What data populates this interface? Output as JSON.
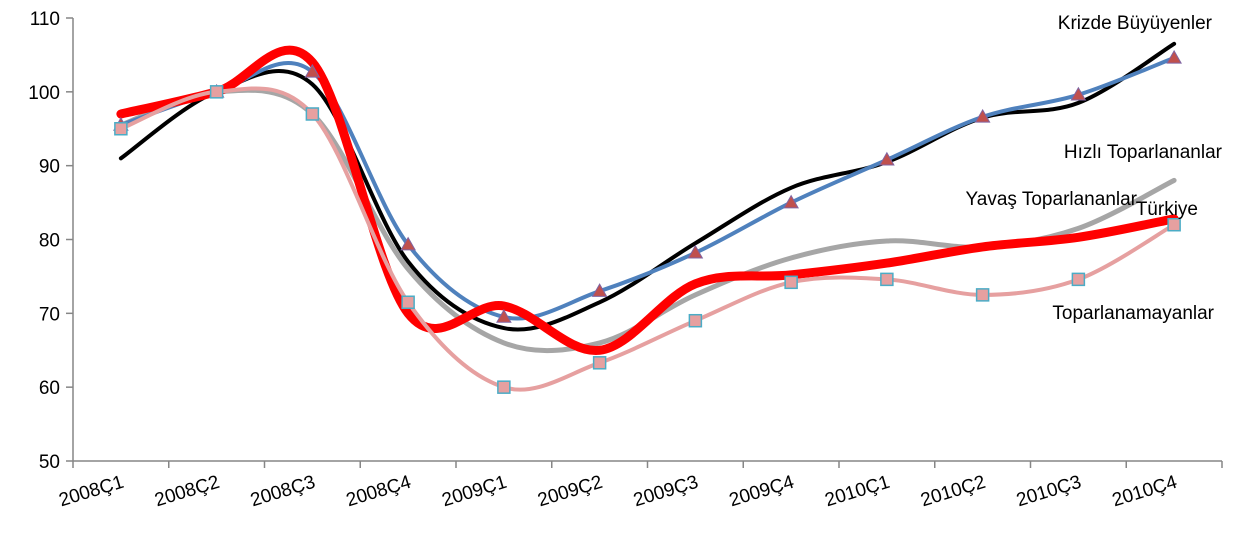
{
  "chart_data": {
    "type": "line",
    "categories": [
      "2008Ç1",
      "2008Ç2",
      "2008Ç3",
      "2008Ç4",
      "2009Ç1",
      "2009Ç2",
      "2009Ç3",
      "2009Ç4",
      "2010Ç1",
      "2010Ç2",
      "2010Ç3",
      "2010Ç4"
    ],
    "ylim": [
      50,
      110
    ],
    "yticks": [
      50,
      60,
      70,
      80,
      90,
      100,
      110
    ],
    "smooth": true,
    "grid": false,
    "legend": "inline labels",
    "series": [
      {
        "name": "Yavaş Toparlananlar",
        "color": "#a6a6a6",
        "width": 5,
        "marker": "none",
        "values": [
          95.5,
          100,
          97,
          76,
          66,
          66,
          72.5,
          77.5,
          79.8,
          79,
          81.5,
          88
        ]
      },
      {
        "name": "Krizde Büyüyenler",
        "color": "#000000",
        "width": 4,
        "marker": "none",
        "values": [
          91,
          100,
          101,
          77,
          68,
          71.5,
          79.5,
          87,
          90.5,
          96.5,
          98.5,
          106.5
        ]
      },
      {
        "name": "Hızlı Toparlananlar",
        "color": "#4f81bd",
        "width": 4,
        "marker": "triangle",
        "values": [
          95.5,
          100,
          102.7,
          79.3,
          69.5,
          73,
          78.2,
          85,
          90.8,
          96.6,
          99.6,
          104.6
        ]
      },
      {
        "name": "Türkiye",
        "color": "#ff0000",
        "width": 9,
        "marker": "none",
        "values": [
          97,
          100,
          104,
          70,
          71,
          65,
          74,
          75.2,
          76.8,
          79,
          80.3,
          82.8
        ]
      },
      {
        "name": "Toparlanamayanlar",
        "color": "#e6a0a0",
        "width": 4,
        "marker": "square",
        "values": [
          95,
          100,
          97,
          71.5,
          60,
          63.3,
          69,
          74.2,
          74.6,
          72.5,
          74.6,
          82
        ]
      }
    ],
    "labels": [
      {
        "text": "Krizde Büyüyenler",
        "anchor": "end"
      },
      {
        "text": "Hızlı Toparlananlar",
        "anchor": "end"
      },
      {
        "text": "Yavaş Toparlananlar",
        "anchor": "end"
      },
      {
        "text": "Türkiye",
        "anchor": "end"
      },
      {
        "text": "Toparlanamayanlar",
        "anchor": "end"
      }
    ]
  }
}
